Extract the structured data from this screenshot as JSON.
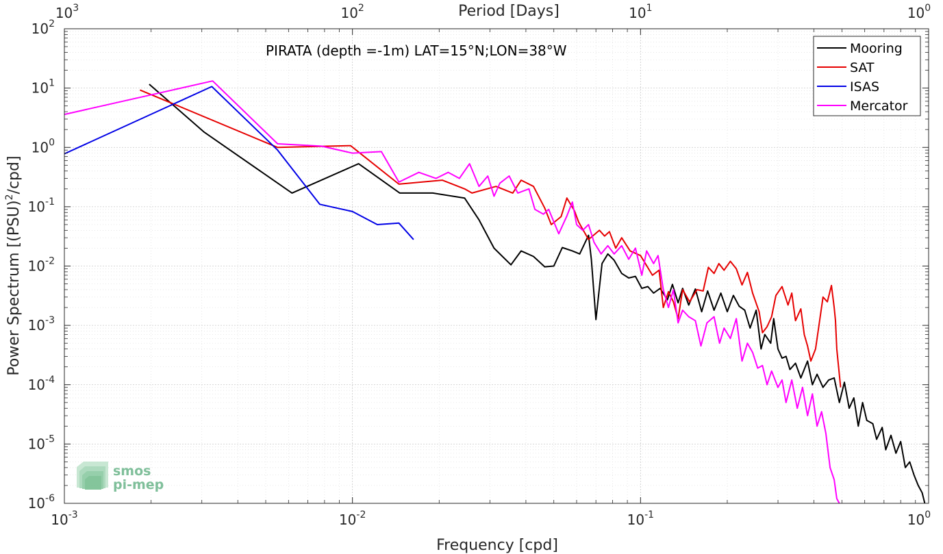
{
  "chart_data": {
    "type": "line",
    "title": "PIRATA (depth =-1m) LAT=15°N;LON=38°W",
    "xlabel": "Frequency [cpd]",
    "ylabel": "Power Spectrum [(PSU)",
    "ylabel_sup": "2",
    "ylabel_tail": "/cpd]",
    "top_xlabel": "Period [Days]",
    "x_scale": "log",
    "y_scale": "log",
    "xlim": [
      0.001,
      1
    ],
    "ylim": [
      1e-06,
      100
    ],
    "grid": true,
    "legend_position": "top-right",
    "x_ticks": [
      {
        "value": 0.001,
        "base": "10",
        "exp": "-3"
      },
      {
        "value": 0.01,
        "base": "10",
        "exp": "-2"
      },
      {
        "value": 0.1,
        "base": "10",
        "exp": "-1"
      },
      {
        "value": 1,
        "base": "10",
        "exp": "0"
      }
    ],
    "y_ticks": [
      {
        "value": 1e-06,
        "base": "10",
        "exp": "-6"
      },
      {
        "value": 1e-05,
        "base": "10",
        "exp": "-5"
      },
      {
        "value": 0.0001,
        "base": "10",
        "exp": "-4"
      },
      {
        "value": 0.001,
        "base": "10",
        "exp": "-3"
      },
      {
        "value": 0.01,
        "base": "10",
        "exp": "-2"
      },
      {
        "value": 0.1,
        "base": "10",
        "exp": "-1"
      },
      {
        "value": 1,
        "base": "10",
        "exp": "0"
      },
      {
        "value": 10,
        "base": "10",
        "exp": "1"
      },
      {
        "value": 100,
        "base": "10",
        "exp": "2"
      }
    ],
    "top_ticks": [
      {
        "value": 0.001,
        "base": "10",
        "exp": "3"
      },
      {
        "value": 0.01,
        "base": "10",
        "exp": "2"
      },
      {
        "value": 0.1,
        "base": "10",
        "exp": "1"
      },
      {
        "value": 1,
        "base": "10",
        "exp": "0"
      }
    ],
    "series": [
      {
        "name": "Mooring",
        "color": "#000000",
        "points": [
          [
            0.00197,
            11.6
          ],
          [
            0.00306,
            1.8
          ],
          [
            0.00617,
            0.17
          ],
          [
            0.0105,
            0.53
          ],
          [
            0.0146,
            0.17
          ],
          [
            0.019,
            0.17
          ],
          [
            0.0245,
            0.14
          ],
          [
            0.0275,
            0.06
          ],
          [
            0.031,
            0.02
          ],
          [
            0.0355,
            0.0105
          ],
          [
            0.0385,
            0.018
          ],
          [
            0.0425,
            0.0145
          ],
          [
            0.0465,
            0.0097
          ],
          [
            0.05,
            0.01
          ],
          [
            0.0535,
            0.0205
          ],
          [
            0.058,
            0.018
          ],
          [
            0.0615,
            0.016
          ],
          [
            0.066,
            0.033
          ],
          [
            0.0675,
            0.013
          ],
          [
            0.07,
            0.00125
          ],
          [
            0.0735,
            0.011
          ],
          [
            0.077,
            0.016
          ],
          [
            0.081,
            0.0125
          ],
          [
            0.086,
            0.0075
          ],
          [
            0.091,
            0.0063
          ],
          [
            0.096,
            0.0067
          ],
          [
            0.101,
            0.0042
          ],
          [
            0.106,
            0.0045
          ],
          [
            0.111,
            0.0035
          ],
          [
            0.117,
            0.0042
          ],
          [
            0.124,
            0.0027
          ],
          [
            0.129,
            0.0049
          ],
          [
            0.135,
            0.0024
          ],
          [
            0.14,
            0.0042
          ],
          [
            0.147,
            0.0022
          ],
          [
            0.155,
            0.0041
          ],
          [
            0.163,
            0.0017
          ],
          [
            0.171,
            0.0038
          ],
          [
            0.18,
            0.0018
          ],
          [
            0.19,
            0.0035
          ],
          [
            0.2,
            0.0017
          ],
          [
            0.21,
            0.0032
          ],
          [
            0.22,
            0.0021
          ],
          [
            0.23,
            0.0018
          ],
          [
            0.24,
            0.0009
          ],
          [
            0.252,
            0.0018
          ],
          [
            0.262,
            0.0004
          ],
          [
            0.27,
            0.0007
          ],
          [
            0.283,
            0.0005
          ],
          [
            0.29,
            0.0013
          ],
          [
            0.3,
            0.0004
          ],
          [
            0.31,
            0.00028
          ],
          [
            0.32,
            0.0003
          ],
          [
            0.33,
            0.00018
          ],
          [
            0.345,
            0.00023
          ],
          [
            0.36,
            0.00013
          ],
          [
            0.38,
            0.00025
          ],
          [
            0.395,
            0.0001
          ],
          [
            0.41,
            0.00015
          ],
          [
            0.43,
            9e-05
          ],
          [
            0.45,
            0.00012
          ],
          [
            0.47,
            0.00013
          ],
          [
            0.49,
            5e-05
          ],
          [
            0.51,
            0.00011
          ],
          [
            0.53,
            4e-05
          ],
          [
            0.55,
            6e-05
          ],
          [
            0.57,
            2e-05
          ],
          [
            0.59,
            5e-05
          ],
          [
            0.61,
            2.5e-05
          ],
          [
            0.64,
            2.2e-05
          ],
          [
            0.66,
            1.2e-05
          ],
          [
            0.69,
            1.9e-05
          ],
          [
            0.71,
            8e-06
          ],
          [
            0.74,
            1.4e-05
          ],
          [
            0.77,
            7e-06
          ],
          [
            0.8,
            1.1e-05
          ],
          [
            0.83,
            4e-06
          ],
          [
            0.86,
            5e-06
          ],
          [
            0.89,
            3e-06
          ],
          [
            0.92,
            2e-06
          ],
          [
            0.95,
            1.5e-06
          ],
          [
            0.97,
            1e-06
          ]
        ]
      },
      {
        "name": "SAT",
        "color": "#e60000",
        "points": [
          [
            0.00183,
            9.3
          ],
          [
            0.0055,
            1.0
          ],
          [
            0.00985,
            1.07
          ],
          [
            0.0145,
            0.24
          ],
          [
            0.0205,
            0.28
          ],
          [
            0.0245,
            0.2
          ],
          [
            0.026,
            0.17
          ],
          [
            0.0315,
            0.22
          ],
          [
            0.036,
            0.17
          ],
          [
            0.0385,
            0.28
          ],
          [
            0.0425,
            0.22
          ],
          [
            0.0465,
            0.095
          ],
          [
            0.049,
            0.05
          ],
          [
            0.053,
            0.068
          ],
          [
            0.0555,
            0.14
          ],
          [
            0.059,
            0.085
          ],
          [
            0.061,
            0.055
          ],
          [
            0.066,
            0.028
          ],
          [
            0.072,
            0.04
          ],
          [
            0.075,
            0.032
          ],
          [
            0.078,
            0.038
          ],
          [
            0.082,
            0.02
          ],
          [
            0.086,
            0.03
          ],
          [
            0.092,
            0.018
          ],
          [
            0.1,
            0.015
          ],
          [
            0.11,
            0.007
          ],
          [
            0.116,
            0.0085
          ],
          [
            0.12,
            0.002
          ],
          [
            0.125,
            0.0037
          ],
          [
            0.13,
            0.0025
          ],
          [
            0.135,
            0.0013
          ],
          [
            0.14,
            0.004
          ],
          [
            0.148,
            0.0025
          ],
          [
            0.157,
            0.004
          ],
          [
            0.165,
            0.0038
          ],
          [
            0.172,
            0.0095
          ],
          [
            0.18,
            0.0075
          ],
          [
            0.187,
            0.011
          ],
          [
            0.195,
            0.0085
          ],
          [
            0.205,
            0.012
          ],
          [
            0.215,
            0.009
          ],
          [
            0.225,
            0.0048
          ],
          [
            0.235,
            0.0078
          ],
          [
            0.245,
            0.0035
          ],
          [
            0.258,
            0.0017
          ],
          [
            0.265,
            0.00075
          ],
          [
            0.275,
            0.00095
          ],
          [
            0.285,
            0.0014
          ],
          [
            0.295,
            0.0032
          ],
          [
            0.31,
            0.0045
          ],
          [
            0.325,
            0.0022
          ],
          [
            0.335,
            0.0035
          ],
          [
            0.345,
            0.0012
          ],
          [
            0.36,
            0.0019
          ],
          [
            0.37,
            0.0007
          ],
          [
            0.38,
            0.00045
          ],
          [
            0.39,
            0.00025
          ],
          [
            0.405,
            0.0004
          ],
          [
            0.415,
            0.0009
          ],
          [
            0.43,
            0.003
          ],
          [
            0.445,
            0.0025
          ],
          [
            0.46,
            0.0047
          ],
          [
            0.47,
            0.002
          ],
          [
            0.475,
            0.0012
          ],
          [
            0.48,
            0.0004
          ],
          [
            0.495,
            9e-05
          ]
        ]
      },
      {
        "name": "ISAS",
        "color": "#0000e6",
        "points": [
          [
            0.001,
            0.78
          ],
          [
            0.00325,
            10.6
          ],
          [
            0.0055,
            0.9
          ],
          [
            0.0077,
            0.11
          ],
          [
            0.01,
            0.083
          ],
          [
            0.0122,
            0.05
          ],
          [
            0.0145,
            0.053
          ],
          [
            0.0163,
            0.028
          ]
        ]
      },
      {
        "name": "Mercator",
        "color": "#ff00ff",
        "points": [
          [
            0.001,
            3.6
          ],
          [
            0.00327,
            13.2
          ],
          [
            0.0055,
            1.15
          ],
          [
            0.0078,
            1.05
          ],
          [
            0.01,
            0.8
          ],
          [
            0.0126,
            0.85
          ],
          [
            0.0145,
            0.26
          ],
          [
            0.017,
            0.38
          ],
          [
            0.0195,
            0.3
          ],
          [
            0.0215,
            0.38
          ],
          [
            0.0235,
            0.3
          ],
          [
            0.0255,
            0.53
          ],
          [
            0.0275,
            0.22
          ],
          [
            0.0295,
            0.33
          ],
          [
            0.031,
            0.15
          ],
          [
            0.0325,
            0.25
          ],
          [
            0.035,
            0.33
          ],
          [
            0.0375,
            0.17
          ],
          [
            0.041,
            0.2
          ],
          [
            0.043,
            0.09
          ],
          [
            0.046,
            0.075
          ],
          [
            0.048,
            0.09
          ],
          [
            0.052,
            0.035
          ],
          [
            0.0555,
            0.07
          ],
          [
            0.058,
            0.12
          ],
          [
            0.06,
            0.05
          ],
          [
            0.063,
            0.04
          ],
          [
            0.066,
            0.05
          ],
          [
            0.069,
            0.025
          ],
          [
            0.073,
            0.016
          ],
          [
            0.077,
            0.022
          ],
          [
            0.081,
            0.016
          ],
          [
            0.086,
            0.022
          ],
          [
            0.091,
            0.013
          ],
          [
            0.096,
            0.02
          ],
          [
            0.101,
            0.007
          ],
          [
            0.105,
            0.018
          ],
          [
            0.111,
            0.011
          ],
          [
            0.115,
            0.015
          ],
          [
            0.12,
            0.004
          ],
          [
            0.125,
            0.002
          ],
          [
            0.13,
            0.004
          ],
          [
            0.135,
            0.0011
          ],
          [
            0.14,
            0.0018
          ],
          [
            0.147,
            0.0014
          ],
          [
            0.155,
            0.0012
          ],
          [
            0.162,
            0.00045
          ],
          [
            0.17,
            0.0011
          ],
          [
            0.18,
            0.0014
          ],
          [
            0.188,
            0.0005
          ],
          [
            0.195,
            0.0009
          ],
          [
            0.205,
            0.0006
          ],
          [
            0.215,
            0.0013
          ],
          [
            0.225,
            0.00025
          ],
          [
            0.235,
            0.0005
          ],
          [
            0.245,
            0.00035
          ],
          [
            0.255,
            0.00019
          ],
          [
            0.265,
            0.00021
          ],
          [
            0.275,
            0.0001
          ],
          [
            0.285,
            0.00017
          ],
          [
            0.3,
            9e-05
          ],
          [
            0.31,
            0.00012
          ],
          [
            0.32,
            5e-05
          ],
          [
            0.335,
            0.00012
          ],
          [
            0.35,
            4e-05
          ],
          [
            0.365,
            9e-05
          ],
          [
            0.38,
            3e-05
          ],
          [
            0.395,
            7e-05
          ],
          [
            0.41,
            2e-05
          ],
          [
            0.425,
            3.5e-05
          ],
          [
            0.44,
            1.5e-05
          ],
          [
            0.455,
            4e-06
          ],
          [
            0.47,
            2.5e-06
          ],
          [
            0.48,
            1.2e-06
          ],
          [
            0.49,
            1e-06
          ]
        ]
      }
    ]
  },
  "logo": {
    "line1": "smos",
    "line2": "pi-mep"
  }
}
